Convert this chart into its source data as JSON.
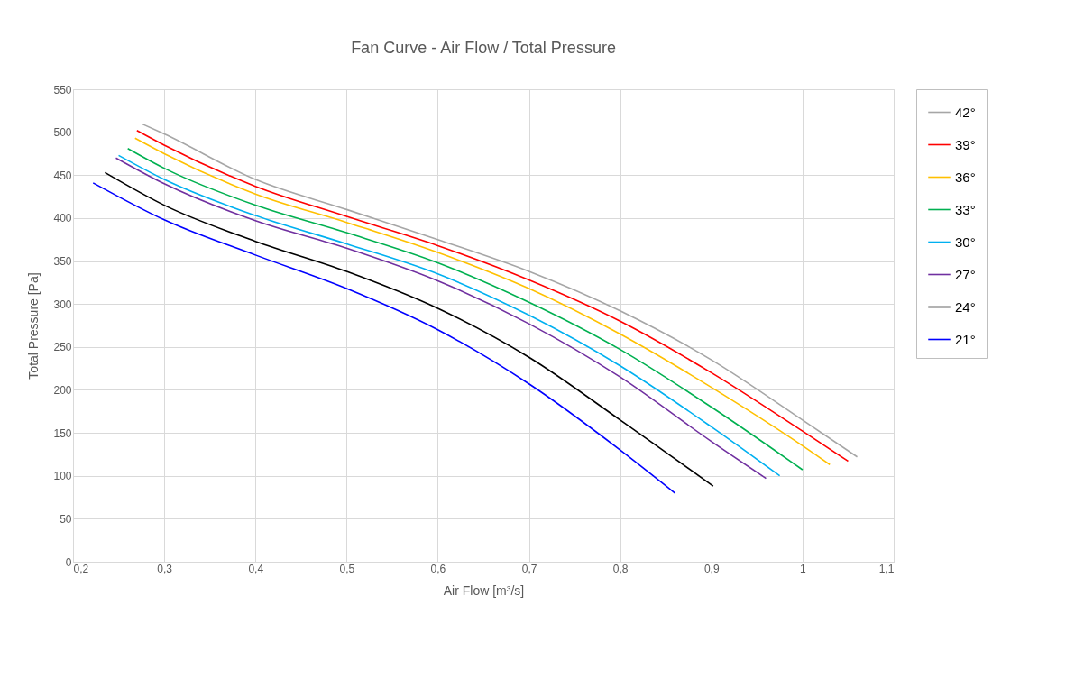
{
  "chart_data": {
    "type": "line",
    "title": "Fan Curve - Air Flow / Total Pressure",
    "xlabel": "Air Flow [m³/s]",
    "ylabel": "Total Pressure [Pa]",
    "xlim": [
      0.2,
      1.1
    ],
    "xticks": [
      {
        "value": 0.2,
        "label": "0,2"
      },
      {
        "value": 0.3,
        "label": "0,3"
      },
      {
        "value": 0.4,
        "label": "0,4"
      },
      {
        "value": 0.5,
        "label": "0,5"
      },
      {
        "value": 0.6,
        "label": "0,6"
      },
      {
        "value": 0.7,
        "label": "0,7"
      },
      {
        "value": 0.8,
        "label": "0,8"
      },
      {
        "value": 0.9,
        "label": "0,9"
      },
      1,
      {
        "value": 1.1,
        "label": "1,1"
      }
    ],
    "ylim": [
      0,
      550
    ],
    "yticks": [
      0,
      50,
      100,
      150,
      200,
      250,
      300,
      350,
      400,
      450,
      500,
      550
    ],
    "grid": true,
    "legend": "right",
    "marker": "none",
    "line_style": "solid",
    "series": [
      {
        "name": "42°",
        "color": "#a6a6a6",
        "x": [
          0.275,
          0.3,
          0.4,
          0.5,
          0.6,
          0.7,
          0.8,
          0.9,
          1.0,
          1.06
        ],
        "values": [
          510,
          498,
          445,
          410,
          375,
          338,
          292,
          235,
          165,
          122
        ]
      },
      {
        "name": "39°",
        "color": "#ff0000",
        "x": [
          0.27,
          0.3,
          0.4,
          0.5,
          0.6,
          0.7,
          0.8,
          0.9,
          1.0,
          1.05
        ],
        "values": [
          502,
          485,
          437,
          402,
          368,
          328,
          280,
          220,
          152,
          117
        ]
      },
      {
        "name": "36°",
        "color": "#ffc000",
        "x": [
          0.268,
          0.3,
          0.4,
          0.5,
          0.6,
          0.7,
          0.8,
          0.9,
          1.0,
          1.03
        ],
        "values": [
          493,
          475,
          428,
          395,
          360,
          318,
          265,
          203,
          135,
          113
        ]
      },
      {
        "name": "33°",
        "color": "#00b050",
        "x": [
          0.26,
          0.3,
          0.4,
          0.5,
          0.6,
          0.7,
          0.8,
          0.9,
          1.0
        ],
        "values": [
          481,
          458,
          415,
          383,
          348,
          302,
          247,
          180,
          107
        ]
      },
      {
        "name": "30°",
        "color": "#00b0f0",
        "x": [
          0.25,
          0.3,
          0.4,
          0.5,
          0.6,
          0.7,
          0.8,
          0.9,
          0.975
        ],
        "values": [
          473,
          445,
          403,
          370,
          335,
          287,
          228,
          157,
          100
        ]
      },
      {
        "name": "27°",
        "color": "#7030a0",
        "x": [
          0.247,
          0.3,
          0.4,
          0.5,
          0.6,
          0.7,
          0.8,
          0.9,
          0.96
        ],
        "values": [
          470,
          440,
          397,
          365,
          327,
          277,
          215,
          140,
          97
        ]
      },
      {
        "name": "24°",
        "color": "#000000",
        "x": [
          0.235,
          0.3,
          0.4,
          0.5,
          0.6,
          0.7,
          0.8,
          0.902
        ],
        "values": [
          453,
          415,
          373,
          338,
          295,
          238,
          165,
          88
        ]
      },
      {
        "name": "21°",
        "color": "#0000ff",
        "x": [
          0.222,
          0.3,
          0.4,
          0.5,
          0.6,
          0.7,
          0.8,
          0.86
        ],
        "values": [
          441,
          398,
          357,
          318,
          270,
          207,
          130,
          80
        ]
      }
    ]
  }
}
